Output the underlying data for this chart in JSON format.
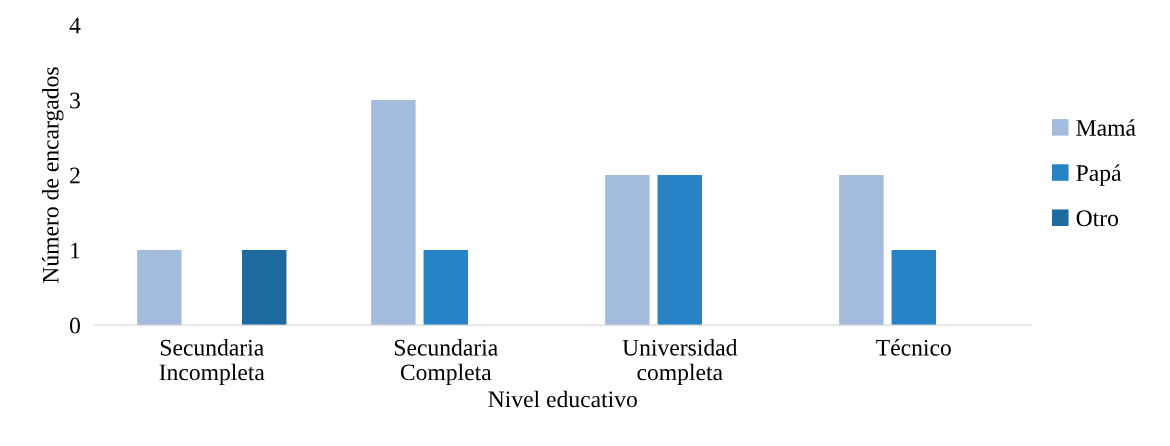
{
  "chart_data": {
    "type": "bar",
    "xlabel": "Nivel educativo",
    "ylabel": "Número de encargados",
    "categories": [
      "Secundaria\nIncompleta",
      "Secundaria\nCompleta",
      "Universidad\ncompleta",
      "Técnico"
    ],
    "series": [
      {
        "name": "Mamá",
        "color": "#a3bbdc",
        "values": [
          1,
          3,
          2,
          2
        ]
      },
      {
        "name": "Papá",
        "color": "#2683c6",
        "values": [
          0,
          1,
          2,
          1
        ]
      },
      {
        "name": "Otro",
        "color": "#1c6aa0",
        "values": [
          1,
          0,
          0,
          0
        ]
      }
    ],
    "ylim": [
      0,
      4
    ],
    "yticks": [
      0,
      1,
      2,
      3,
      4
    ],
    "grid": false,
    "legend": "right"
  }
}
